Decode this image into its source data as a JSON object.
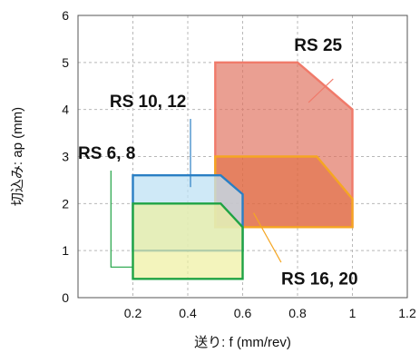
{
  "chart_data": {
    "type": "area",
    "xlabel": "送り: f (mm/rev)",
    "ylabel": "切込み: ap (mm)",
    "xlim": [
      0,
      1.2
    ],
    "ylim": [
      0,
      6
    ],
    "x_ticks": [
      "0.2",
      "0.4",
      "0.6",
      "0.8",
      "1",
      "1.2"
    ],
    "y_ticks": [
      "0",
      "1",
      "2",
      "3",
      "4",
      "5",
      "6"
    ],
    "grid": true,
    "regions": [
      {
        "name": "RS 25",
        "fill": "#e0715f",
        "stroke": "#f07a6a",
        "opacity": 0.68,
        "points": [
          [
            0.5,
            1.5
          ],
          [
            0.5,
            5.0
          ],
          [
            0.8,
            5.0
          ],
          [
            1.0,
            4.0
          ],
          [
            1.0,
            1.5
          ]
        ]
      },
      {
        "name": "RS 16, 20",
        "fill": "#e0632f",
        "stroke": "#f5a623",
        "opacity": 0.5,
        "points": [
          [
            0.5,
            1.5
          ],
          [
            0.5,
            3.0
          ],
          [
            0.87,
            3.0
          ],
          [
            1.0,
            2.1
          ],
          [
            1.0,
            1.5
          ]
        ]
      },
      {
        "name": "RS 10, 12",
        "fill": "#bfe1f4",
        "stroke": "#2a7fc4",
        "opacity": 0.75,
        "points": [
          [
            0.2,
            1.0
          ],
          [
            0.2,
            2.6
          ],
          [
            0.52,
            2.6
          ],
          [
            0.6,
            2.2
          ],
          [
            0.6,
            1.0
          ]
        ]
      },
      {
        "name": "RS 6, 8",
        "fill": "#eef0a0",
        "stroke": "#1fa344",
        "opacity": 0.7,
        "points": [
          [
            0.2,
            0.4
          ],
          [
            0.2,
            2.0
          ],
          [
            0.52,
            2.0
          ],
          [
            0.6,
            1.5
          ],
          [
            0.6,
            0.4
          ]
        ]
      }
    ],
    "labels": [
      {
        "text": "RS 25",
        "color": "#f07a6a"
      },
      {
        "text": "RS 10, 12",
        "color": "#2a7fc4"
      },
      {
        "text": "RS 6, 8",
        "color": "#1fa344"
      },
      {
        "text": "RS 16, 20",
        "color": "#f5a623"
      }
    ]
  }
}
